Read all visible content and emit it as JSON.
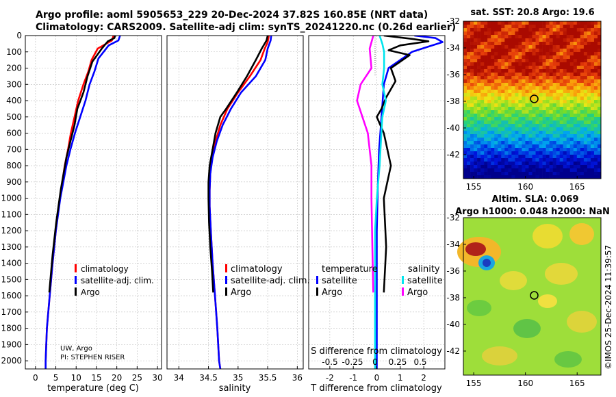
{
  "header": {
    "line1": "Argo profile: aoml 5905653_229 20-Dec-2024 37.82S 160.85E (NRT data)",
    "line2": "Climatology: CARS2009. Satellite-adj clim: synTS_20241220.nc (0.26d earlier)"
  },
  "colors": {
    "climatology": "#ff0000",
    "satellite": "#0000ff",
    "argo": "#000000",
    "t_sat": "#00e5ee",
    "s_argo": "#ff00ff",
    "grid": "#bbbbbb"
  },
  "chart_data": [
    {
      "id": "temperature",
      "type": "line",
      "xlabel": "temperature (deg C)",
      "ylabel": "",
      "xlim": [
        -2.5,
        31
      ],
      "ylim": [
        2050,
        0
      ],
      "xticks": [
        "0",
        "5",
        "10",
        "15",
        "20",
        "25",
        "30"
      ],
      "xtick_values": [
        0,
        5,
        10,
        15,
        20,
        25,
        30
      ],
      "yticks": [
        "0",
        "100",
        "200",
        "300",
        "400",
        "500",
        "600",
        "700",
        "800",
        "900",
        "1000",
        "1100",
        "1200",
        "1300",
        "1400",
        "1500",
        "1600",
        "1700",
        "1800",
        "1900",
        "2000"
      ],
      "ytick_values": [
        0,
        100,
        200,
        300,
        400,
        500,
        600,
        700,
        800,
        900,
        1000,
        1100,
        1200,
        1300,
        1400,
        1500,
        1600,
        1700,
        1800,
        1900,
        2000
      ],
      "legend": [
        "climatology",
        "satellite-adj. clim.",
        "Argo"
      ],
      "annotation_lines": [
        "UW, Argo",
        "PI: STEPHEN RISER"
      ],
      "series": [
        {
          "name": "climatology",
          "x": [
            19.2,
            18.8,
            15.3,
            13.8,
            13.0,
            11.8,
            10.5,
            9.6,
            8.7,
            8.0,
            7.2,
            6.0,
            5.0,
            4.2,
            3.5,
            2.8,
            2.5,
            2.5
          ],
          "y": [
            0,
            30,
            80,
            150,
            220,
            300,
            400,
            500,
            600,
            700,
            800,
            1000,
            1200,
            1400,
            1600,
            1800,
            2000,
            2050
          ]
        },
        {
          "name": "satellite-adj. clim.",
          "x": [
            20.8,
            20.4,
            18.0,
            15.5,
            14.5,
            13.3,
            12.3,
            11.0,
            9.7,
            8.6,
            7.6,
            6.1,
            5.0,
            4.2,
            3.5,
            2.8,
            2.5,
            2.5
          ],
          "y": [
            0,
            30,
            60,
            140,
            220,
            300,
            400,
            500,
            600,
            700,
            800,
            1000,
            1200,
            1400,
            1600,
            1800,
            2000,
            2050
          ]
        },
        {
          "name": "Argo",
          "x": [
            19.6,
            19.4,
            17.8,
            16.3,
            14.0,
            12.8,
            11.8,
            10.3,
            9.6,
            8.6,
            7.6,
            6.2,
            5.1,
            4.2,
            3.4
          ],
          "y": [
            0,
            15,
            35,
            80,
            160,
            250,
            350,
            450,
            550,
            650,
            750,
            950,
            1150,
            1350,
            1580
          ]
        }
      ]
    },
    {
      "id": "salinity",
      "type": "line",
      "xlabel": "salinity",
      "ylabel": "",
      "xlim": [
        33.8,
        36.1
      ],
      "ylim": [
        2050,
        0
      ],
      "xticks": [
        "34",
        "34.5",
        "35",
        "35.5",
        "36"
      ],
      "xtick_values": [
        34,
        34.5,
        35,
        35.5,
        36
      ],
      "legend": [
        "climatology",
        "satellite-adj. clim.",
        "Argo"
      ],
      "series": [
        {
          "name": "climatology",
          "x": [
            35.52,
            35.5,
            35.45,
            35.38,
            35.2,
            35.0,
            34.82,
            34.7,
            34.62,
            34.56,
            34.53,
            34.52,
            34.52,
            34.54,
            34.57,
            34.61,
            34.65,
            34.68,
            34.7
          ],
          "y": [
            0,
            40,
            80,
            150,
            250,
            350,
            450,
            550,
            650,
            750,
            850,
            950,
            1050,
            1200,
            1400,
            1600,
            1800,
            2000,
            2050
          ]
        },
        {
          "name": "satellite-adj. clim.",
          "x": [
            35.56,
            35.55,
            35.5,
            35.46,
            35.3,
            35.05,
            34.88,
            34.74,
            34.64,
            34.57,
            34.53,
            34.52,
            34.52,
            34.54,
            34.57,
            34.61,
            34.65,
            34.68,
            34.7
          ],
          "y": [
            0,
            30,
            80,
            150,
            250,
            350,
            450,
            550,
            650,
            750,
            850,
            950,
            1050,
            1200,
            1400,
            1600,
            1800,
            2000,
            2050
          ]
        },
        {
          "name": "Argo",
          "x": [
            35.5,
            35.48,
            35.4,
            35.3,
            35.15,
            34.98,
            34.8,
            34.7,
            34.62,
            34.57,
            34.52,
            34.5,
            34.5,
            34.51,
            34.53,
            34.56,
            34.58
          ],
          "y": [
            0,
            30,
            80,
            150,
            250,
            350,
            450,
            500,
            600,
            700,
            800,
            900,
            1000,
            1150,
            1300,
            1450,
            1580
          ]
        }
      ]
    },
    {
      "id": "differences",
      "type": "line",
      "xlabel": "T difference from climatology",
      "xlabel2": "S difference from climatology",
      "xlim": [
        -2.9,
        2.9
      ],
      "ylim": [
        2050,
        0
      ],
      "xticks": [
        "-2",
        "-1",
        "0",
        "1",
        "2"
      ],
      "xtick_values": [
        -2,
        -1,
        0,
        1,
        2
      ],
      "xticks2": [
        "-0.5",
        "-0.25",
        "0",
        "0.25",
        "0.5"
      ],
      "xtick2_values": [
        -0.5,
        -0.25,
        0,
        0.25,
        0.5
      ],
      "legend_headers": [
        "temperature",
        "salinity"
      ],
      "legend_temperature": [
        "satellite",
        "Argo"
      ],
      "legend_salinity": [
        "satellite",
        "Argo"
      ],
      "series": [
        {
          "name": "T satellite",
          "x": [
            1.6,
            2.5,
            2.8,
            1.5,
            0.5,
            0.3,
            0.2,
            0.1,
            0.05,
            0.0,
            0.0,
            0.0
          ],
          "y": [
            0,
            15,
            40,
            100,
            200,
            300,
            500,
            700,
            900,
            1200,
            1600,
            2050
          ]
        },
        {
          "name": "T Argo",
          "x": [
            0.3,
            1.5,
            2.2,
            1.0,
            0.5,
            1.4,
            0.6,
            0.8,
            0.4,
            0.2,
            0.0,
            0.3,
            0.6,
            0.3,
            0.4,
            0.3
          ],
          "y": [
            0,
            20,
            35,
            60,
            90,
            120,
            200,
            280,
            380,
            450,
            500,
            600,
            800,
            1000,
            1300,
            1580
          ]
        },
        {
          "name": "S satellite",
          "x": [
            0.05,
            0.08,
            0.1,
            0.1,
            0.08,
            0.12,
            0.08,
            0.07,
            0.05,
            0.02,
            0.0,
            0.0,
            0.0
          ],
          "y": [
            0,
            50,
            100,
            200,
            300,
            400,
            500,
            600,
            800,
            1000,
            1200,
            1600,
            2050
          ]
        },
        {
          "name": "S Argo",
          "x": [
            -0.02,
            -0.06,
            -0.04,
            -0.16,
            -0.2,
            -0.14,
            -0.08,
            -0.04,
            -0.04,
            -0.03,
            -0.02
          ],
          "y": [
            0,
            80,
            200,
            300,
            400,
            500,
            600,
            800,
            1000,
            1300,
            1580
          ]
        }
      ]
    },
    {
      "id": "sst_map",
      "type": "heatmap",
      "title": "sat. SST: 20.8 Argo: 19.6",
      "xticks": [
        "155",
        "160",
        "165"
      ],
      "xtick_values": [
        155,
        160,
        165
      ],
      "yticks": [
        "-32",
        "-34",
        "-36",
        "-38",
        "-40",
        "-42"
      ],
      "ytick_values": [
        -32,
        -34,
        -36,
        -38,
        -40,
        -42
      ],
      "xlim": [
        154.0,
        167.3
      ],
      "ylim": [
        -43.8,
        -32.0
      ],
      "marker": {
        "lon": 160.85,
        "lat": -37.82
      }
    },
    {
      "id": "sla_map",
      "type": "heatmap",
      "title": "Altim. SLA: 0.069",
      "subtitle": "Argo h1000: 0.048 h2000: NaN",
      "xticks": [
        "155",
        "160",
        "165"
      ],
      "xtick_values": [
        155,
        160,
        165
      ],
      "yticks": [
        "-32",
        "-34",
        "-36",
        "-38",
        "-40",
        "-42"
      ],
      "ytick_values": [
        -32,
        -34,
        -36,
        -38,
        -40,
        -42
      ],
      "xlim": [
        154.0,
        167.3
      ],
      "ylim": [
        -43.8,
        -32.0
      ],
      "marker": {
        "lon": 160.85,
        "lat": -37.82
      }
    }
  ],
  "credit": "©IMOS 25-Dec-2024 11:39:57"
}
